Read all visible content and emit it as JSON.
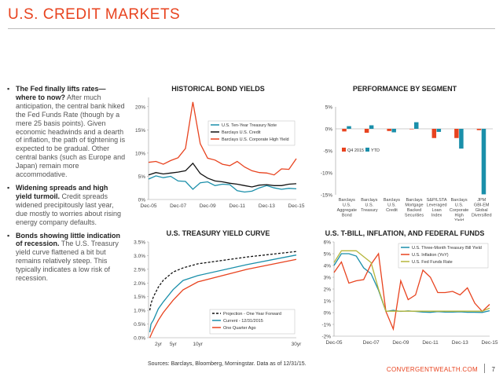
{
  "page": {
    "title": "U.S. CREDIT MARKETS",
    "sources": "Sources: Barclays, Bloomberg, Morningstar. Data as of 12/31/15.",
    "site": "CONVERGENTWEALTH.COM",
    "page_number": "7"
  },
  "bullets": [
    {
      "heading": "The Fed finally lifts rates— where to now?",
      "body": " After much anticipation, the central bank hiked the Fed Funds Rate (though by a mere 25 basis points). Given economic headwinds and a dearth of inflation, the path of tightening is expected to be gradual. Other central banks (such as Europe and Japan) remain more accommodative."
    },
    {
      "heading": "Widening spreads and high yield turmoil.",
      "body": " Credit spreads widened precipitously last year, due mostly to worries about rising energy company defaults."
    },
    {
      "heading": "Bonds showing little indication of recession.",
      "body": " The U.S. Treasury yield curve flattened a bit but remains relatively steep. This typically indicates a low risk of recession."
    }
  ],
  "colors": {
    "accent": "#e8431f",
    "teal": "#1a8faa",
    "black": "#111111",
    "red": "#e8431f",
    "blue": "#2b7fc4",
    "olive": "#b5b53a",
    "gray": "#555555"
  },
  "chart_data": [
    {
      "type": "line",
      "title": "HISTORICAL BOND YIELDS",
      "x": [
        "Dec-05",
        "Jun-06",
        "Dec-06",
        "Jun-07",
        "Dec-07",
        "Jun-08",
        "Dec-08",
        "Jun-09",
        "Dec-09",
        "Jun-10",
        "Dec-10",
        "Jun-11",
        "Dec-11",
        "Jun-12",
        "Dec-12",
        "Jun-13",
        "Dec-13",
        "Jun-14",
        "Dec-14",
        "Jun-15",
        "Dec-15"
      ],
      "xticks": [
        "Dec-05",
        "Dec-07",
        "Dec-09",
        "Dec-11",
        "Dec-13",
        "Dec-15"
      ],
      "yticks": [
        "0%",
        "5%",
        "10%",
        "15%",
        "20%"
      ],
      "ylim": [
        0,
        22
      ],
      "legend": "top-right",
      "series": [
        {
          "name": "U.S. Ten-Year Treasury Note",
          "color": "#1a8faa",
          "values": [
            4.4,
            5.1,
            4.7,
            5.0,
            4.0,
            3.9,
            2.2,
            3.6,
            3.8,
            3.0,
            3.3,
            3.2,
            1.9,
            1.6,
            1.8,
            2.5,
            3.0,
            2.5,
            2.2,
            2.4,
            2.3
          ]
        },
        {
          "name": "Barclays U.S. Credit",
          "color": "#111111",
          "values": [
            5.3,
            5.8,
            5.5,
            5.7,
            5.9,
            6.2,
            7.8,
            5.6,
            4.6,
            4.0,
            3.8,
            3.5,
            3.3,
            3.0,
            2.7,
            3.1,
            3.2,
            3.0,
            3.0,
            3.3,
            3.4
          ]
        },
        {
          "name": "Barclays U.S. Corporate High Yield",
          "color": "#e8431f",
          "values": [
            8.0,
            8.2,
            7.6,
            8.4,
            9.0,
            11.0,
            21.0,
            12.0,
            8.9,
            8.5,
            7.6,
            7.3,
            8.2,
            7.0,
            6.2,
            5.8,
            5.7,
            5.3,
            6.6,
            6.5,
            8.8
          ]
        }
      ]
    },
    {
      "type": "bar",
      "title": "PERFORMANCE BY SEGMENT",
      "categories": [
        "Barclays U.S. Aggregate Bond",
        "Barclays U.S. Treasury",
        "Barclays U.S. Credit",
        "Barclays Mortgage Backed Securities",
        "S&P/LSTA Leveraged Loan Index",
        "Barclays U.S. Corporate High Yield",
        "JPM GBI-EM Global Diversified"
      ],
      "yticks": [
        "5%",
        "0%",
        "-5%",
        "-10%",
        "-15%"
      ],
      "ylim": [
        -15,
        5
      ],
      "legend": "left",
      "series": [
        {
          "name": "Q4 2015",
          "color": "#e8431f",
          "values": [
            -0.6,
            -0.9,
            -0.5,
            -0.1,
            -2.1,
            -2.1,
            -0.3
          ]
        },
        {
          "name": "YTD",
          "color": "#1a8faa",
          "values": [
            0.6,
            0.8,
            -0.8,
            1.5,
            -0.7,
            -4.5,
            -14.9
          ]
        }
      ]
    },
    {
      "type": "line",
      "title": "U.S. TREASURY YIELD CURVE",
      "x": [
        0.25,
        0.5,
        1,
        2,
        3,
        5,
        7,
        10,
        20,
        30
      ],
      "xticks": [
        "2yr",
        "5yr",
        "10yr",
        "30yr"
      ],
      "xtick_values": [
        2,
        5,
        10,
        30
      ],
      "yticks": [
        "0.0%",
        "0.5%",
        "1.0%",
        "1.5%",
        "2.0%",
        "2.5%",
        "3.0%",
        "3.5%"
      ],
      "ylim": [
        0,
        3.5
      ],
      "legend": "bottom-right",
      "series": [
        {
          "name": "Projection - One Year Forward",
          "color": "#111111",
          "dashed": true,
          "values": [
            1.0,
            1.25,
            1.5,
            1.85,
            2.1,
            2.4,
            2.55,
            2.7,
            2.95,
            3.15
          ]
        },
        {
          "name": "Current - 12/31/2015",
          "color": "#1a8faa",
          "values": [
            0.2,
            0.5,
            0.65,
            1.06,
            1.31,
            1.76,
            2.09,
            2.27,
            2.67,
            3.02
          ]
        },
        {
          "name": "One Quarter Ago",
          "color": "#e8431f",
          "values": [
            0.0,
            0.1,
            0.3,
            0.64,
            0.92,
            1.37,
            1.75,
            2.04,
            2.5,
            2.86
          ]
        }
      ]
    },
    {
      "type": "line",
      "title": "U.S. T-BILL, INFLATION, AND FEDERAL FUNDS",
      "x": [
        "Dec-05",
        "Jun-06",
        "Dec-06",
        "Jun-07",
        "Sep-07",
        "Dec-07",
        "Jun-08",
        "Dec-08",
        "Jun-09",
        "Dec-09",
        "Jun-10",
        "Dec-10",
        "Jun-11",
        "Dec-11",
        "Jun-12",
        "Dec-12",
        "Jun-13",
        "Dec-13",
        "Jun-14",
        "Dec-14",
        "Jun-15",
        "Dec-15"
      ],
      "xticks": [
        "Dec-05",
        "Dec-07",
        "Dec-09",
        "Dec-11",
        "Dec-13",
        "Dec-15"
      ],
      "yticks": [
        "6%",
        "5%",
        "4%",
        "3%",
        "2%",
        "1%",
        "0%",
        "-1%",
        "-2%"
      ],
      "ylim": [
        -2,
        6
      ],
      "legend": "top-right",
      "series": [
        {
          "name": "U.S. Three-Month Treasury Bill Yield",
          "color": "#1a8faa",
          "values": [
            4.0,
            5.0,
            5.0,
            4.8,
            3.8,
            3.3,
            1.9,
            0.1,
            0.2,
            0.1,
            0.15,
            0.1,
            0.05,
            0.02,
            0.09,
            0.05,
            0.04,
            0.07,
            0.03,
            0.03,
            0.01,
            0.16
          ]
        },
        {
          "name": "U.S. Inflation (YoY)",
          "color": "#e8431f",
          "values": [
            3.4,
            4.3,
            2.5,
            2.7,
            2.8,
            4.1,
            5.0,
            0.1,
            -1.4,
            2.7,
            1.1,
            1.5,
            3.6,
            3.0,
            1.7,
            1.7,
            1.8,
            1.5,
            2.1,
            0.8,
            0.1,
            0.7
          ]
        },
        {
          "name": "U.S. Fed Funds Rate",
          "color": "#b5b53a",
          "values": [
            4.25,
            5.25,
            5.25,
            5.25,
            4.75,
            4.25,
            2.0,
            0.12,
            0.12,
            0.12,
            0.12,
            0.12,
            0.12,
            0.12,
            0.12,
            0.12,
            0.12,
            0.12,
            0.12,
            0.12,
            0.12,
            0.37
          ]
        }
      ]
    }
  ]
}
